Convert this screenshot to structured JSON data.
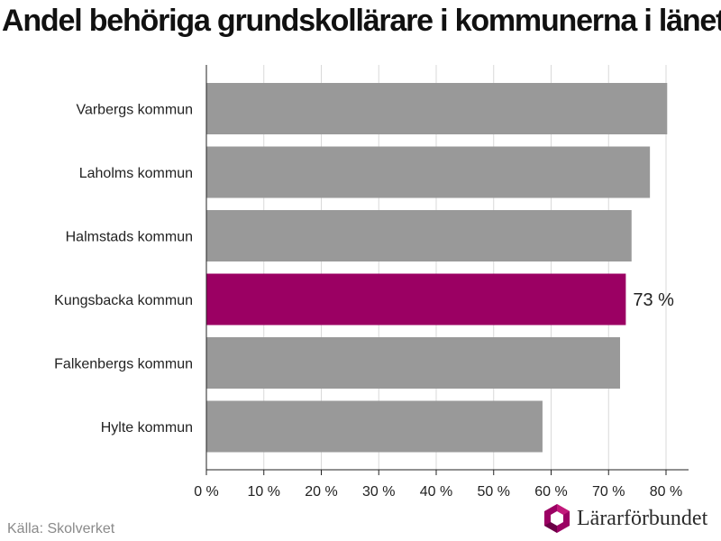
{
  "title": "Andel behöriga grundskollärare i kommunerna i länet",
  "source": "Källa: Skolverket",
  "brand": {
    "name": "Lärarförbundet",
    "logo_icon": "lararforbundet-logo-icon"
  },
  "colors": {
    "bar": "#999999",
    "highlight": "#9b0063",
    "grid": "#d9d9d9",
    "axis": "#222222"
  },
  "chart_data": {
    "type": "bar",
    "orientation": "horizontal",
    "categories": [
      "Varbergs kommun",
      "Laholms kommun",
      "Halmstads kommun",
      "Kungsbacka kommun",
      "Falkenbergs kommun",
      "Hylte kommun"
    ],
    "values": [
      80.2,
      77.2,
      74.0,
      73.0,
      72.0,
      58.5
    ],
    "highlight_category": "Kungsbacka kommun",
    "data_labels": [
      {
        "category": "Kungsbacka kommun",
        "text": "73 %"
      }
    ],
    "xlim": [
      0,
      84
    ],
    "xticks": [
      0,
      10,
      20,
      30,
      40,
      50,
      60,
      70,
      80
    ],
    "xtick_labels": [
      "0 %",
      "10 %",
      "20 %",
      "30 %",
      "40 %",
      "50 %",
      "60 %",
      "70 %",
      "80 %"
    ],
    "xlabel": "",
    "ylabel": "",
    "grid": "vertical",
    "legend": "none"
  }
}
